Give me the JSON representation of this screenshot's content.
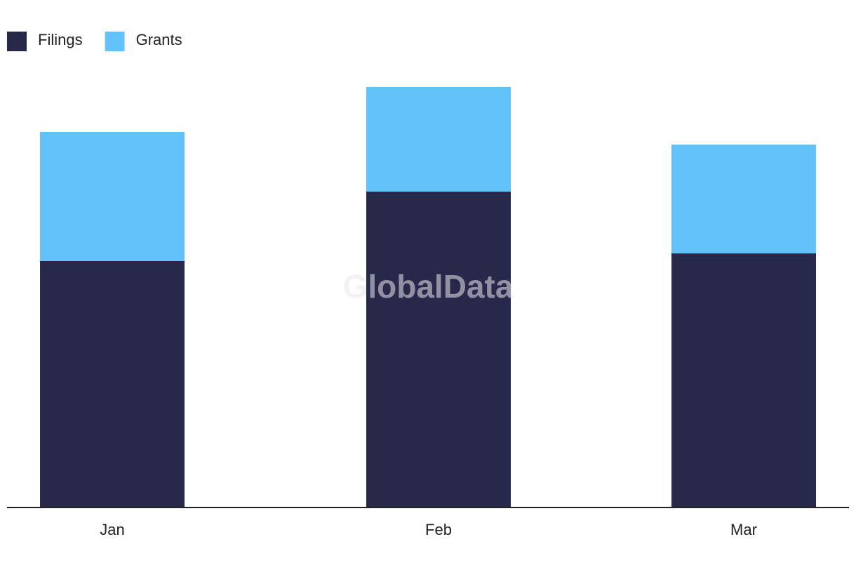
{
  "chart_data": {
    "type": "stacked_bar",
    "watermark": "GlobalData",
    "categories": [
      "Jan",
      "Feb",
      "Mar"
    ],
    "series": [
      {
        "name": "Filings",
        "color": "#28284b",
        "values": [
          351,
          450,
          362
        ]
      },
      {
        "name": "Grants",
        "color": "#62c1f8",
        "values": [
          184,
          149,
          155
        ]
      }
    ],
    "ylim": [
      0,
      600
    ],
    "legend": "top-left"
  }
}
